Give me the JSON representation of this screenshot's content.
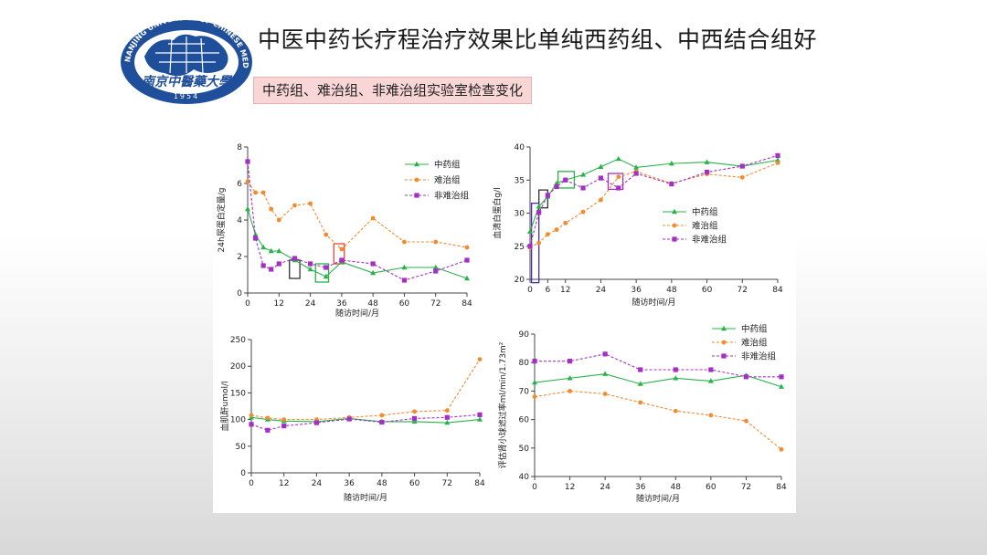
{
  "slide": {
    "title": "中医中药长疗程治疗效果比单纯西药组、中西结合组好",
    "subtitle": "中药组、难治组、非难治组实验室检查变化"
  },
  "logo": {
    "arc_text": "NANJING UNIVERSITY OF CHINESE MEDICINE",
    "seal_text": "南京中醫藥大學",
    "year": "1954",
    "colors": {
      "primary": "#1f4f9a"
    }
  },
  "series_colors": {
    "中药组": "#2ab24a",
    "难治组": "#f28a2e",
    "非难治组": "#a52fc4"
  },
  "chart_data": [
    {
      "type": "line",
      "ylabel": "24h尿蛋白定量/g",
      "xlabel": "随访时间/月",
      "xticks": [
        0,
        12,
        24,
        36,
        48,
        60,
        72,
        84
      ],
      "yticks": [
        0,
        2,
        4,
        6,
        8
      ],
      "xlim": [
        0,
        84
      ],
      "ylim": [
        0,
        8
      ],
      "legend_position": "top-right",
      "series": [
        {
          "name": "中药组",
          "marker": "triangle",
          "dash": false,
          "x": [
            0,
            3,
            6,
            9,
            12,
            18,
            24,
            30,
            36,
            48,
            60,
            72,
            84
          ],
          "y": [
            4.6,
            3.2,
            2.5,
            2.3,
            2.3,
            1.8,
            1.3,
            0.9,
            1.7,
            1.1,
            1.4,
            1.4,
            0.8
          ]
        },
        {
          "name": "难治组",
          "marker": "circle",
          "dash": true,
          "x": [
            0,
            3,
            6,
            9,
            12,
            18,
            24,
            30,
            36,
            48,
            60,
            72,
            84
          ],
          "y": [
            6.1,
            5.5,
            5.5,
            4.6,
            4.0,
            4.8,
            4.9,
            3.2,
            2.4,
            4.1,
            2.8,
            2.8,
            2.5
          ]
        },
        {
          "name": "非难治组",
          "marker": "square",
          "dash": true,
          "x": [
            0,
            3,
            6,
            9,
            12,
            18,
            24,
            30,
            36,
            48,
            60,
            72,
            84
          ],
          "y": [
            7.2,
            3.0,
            1.5,
            1.3,
            1.6,
            1.9,
            1.6,
            1.4,
            1.8,
            1.6,
            0.7,
            1.2,
            1.8
          ]
        }
      ],
      "highlight_boxes": [
        {
          "x": [
            16,
            20
          ],
          "y": [
            0.8,
            1.8
          ],
          "color": "#333333"
        },
        {
          "x": [
            26,
            31
          ],
          "y": [
            0.6,
            1.6
          ],
          "color": "#2ab24a"
        },
        {
          "x": [
            33,
            37
          ],
          "y": [
            1.6,
            2.7
          ],
          "color": "#e2493f"
        }
      ]
    },
    {
      "type": "line",
      "ylabel": "血清白蛋白g/l",
      "xlabel": "随访时间/月",
      "xticks": [
        0,
        6,
        12,
        24,
        36,
        48,
        60,
        72,
        84
      ],
      "yticks": [
        20,
        25,
        30,
        35,
        40
      ],
      "xlim": [
        0,
        84
      ],
      "ylim": [
        20,
        40
      ],
      "legend_position": "right",
      "series": [
        {
          "name": "中药组",
          "marker": "triangle",
          "dash": false,
          "x": [
            0,
            3,
            6,
            9,
            12,
            18,
            24,
            30,
            36,
            48,
            60,
            72,
            84
          ],
          "y": [
            27.2,
            31.0,
            32.5,
            34.5,
            35.0,
            35.8,
            37.0,
            38.2,
            36.9,
            37.5,
            37.7,
            37.1,
            38.0
          ]
        },
        {
          "name": "难治组",
          "marker": "circle",
          "dash": true,
          "x": [
            0,
            3,
            6,
            9,
            12,
            18,
            24,
            30,
            36,
            48,
            60,
            72,
            84
          ],
          "y": [
            24.8,
            25.5,
            26.8,
            27.5,
            28.5,
            30.2,
            32.0,
            35.5,
            36.3,
            34.5,
            35.9,
            35.4,
            37.6
          ]
        },
        {
          "name": "非难治组",
          "marker": "square",
          "dash": true,
          "x": [
            0,
            3,
            6,
            9,
            12,
            18,
            24,
            30,
            36,
            48,
            60,
            72,
            84
          ],
          "y": [
            25.0,
            30.1,
            32.7,
            34.0,
            35.0,
            33.8,
            35.3,
            33.8,
            36.0,
            34.4,
            36.2,
            37.1,
            38.7
          ]
        }
      ],
      "highlight_boxes": [
        {
          "x": [
            0.5,
            3
          ],
          "y": [
            19.5,
            31.5
          ],
          "color": "#4a2ca8"
        },
        {
          "x": [
            3,
            6
          ],
          "y": [
            30.8,
            33.5
          ],
          "color": "#333333"
        },
        {
          "x": [
            9.5,
            15
          ],
          "y": [
            33.8,
            36.3
          ],
          "color": "#2ab24a"
        },
        {
          "x": [
            26.5,
            31.5
          ],
          "y": [
            33.6,
            36.0
          ],
          "color": "#a52fc4"
        }
      ]
    },
    {
      "type": "line",
      "ylabel": "血肌酐umol/l",
      "xlabel": "随访时间/月",
      "xticks": [
        0,
        12,
        24,
        36,
        48,
        60,
        72,
        84
      ],
      "yticks": [
        0,
        50,
        100,
        150,
        200,
        250
      ],
      "xlim": [
        0,
        84
      ],
      "ylim": [
        0,
        250
      ],
      "series": [
        {
          "name": "中药组",
          "marker": "triangle",
          "dash": false,
          "x": [
            0,
            6,
            12,
            24,
            36,
            48,
            60,
            72,
            84
          ],
          "y": [
            104,
            100,
            97,
            96,
            102,
            96,
            96,
            94,
            100
          ]
        },
        {
          "name": "难治组",
          "marker": "circle",
          "dash": true,
          "x": [
            0,
            6,
            12,
            24,
            36,
            48,
            60,
            72,
            84
          ],
          "y": [
            108,
            103,
            100,
            100,
            104,
            108,
            115,
            117,
            213
          ]
        },
        {
          "name": "非难治组",
          "marker": "square",
          "dash": true,
          "x": [
            0,
            6,
            12,
            24,
            36,
            48,
            60,
            72,
            84
          ],
          "y": [
            91,
            80,
            88,
            94,
            101,
            95,
            102,
            104,
            109
          ]
        }
      ]
    },
    {
      "type": "line",
      "ylabel": "评估肾小球滤过率ml/min/1.73m²",
      "xlabel": "随访时间/月",
      "xticks": [
        0,
        12,
        24,
        36,
        48,
        60,
        72,
        84
      ],
      "yticks": [
        40,
        50,
        60,
        70,
        80,
        90
      ],
      "xlim": [
        0,
        84
      ],
      "ylim": [
        40,
        90
      ],
      "legend_position": "top-right",
      "series": [
        {
          "name": "中药组",
          "marker": "triangle",
          "dash": false,
          "x": [
            0,
            12,
            24,
            36,
            48,
            60,
            72,
            84
          ],
          "y": [
            73,
            74.5,
            76,
            72.5,
            74.5,
            73.5,
            75.5,
            71.5
          ]
        },
        {
          "name": "难治组",
          "marker": "circle",
          "dash": true,
          "x": [
            0,
            12,
            24,
            36,
            48,
            60,
            72,
            84
          ],
          "y": [
            68,
            70,
            69,
            66,
            63,
            61.5,
            59.5,
            49.5
          ]
        },
        {
          "name": "非难治组",
          "marker": "square",
          "dash": true,
          "x": [
            0,
            12,
            24,
            36,
            48,
            60,
            72,
            84
          ],
          "y": [
            80.5,
            80.5,
            83,
            77.5,
            77.5,
            77.5,
            75,
            75
          ]
        }
      ]
    }
  ]
}
